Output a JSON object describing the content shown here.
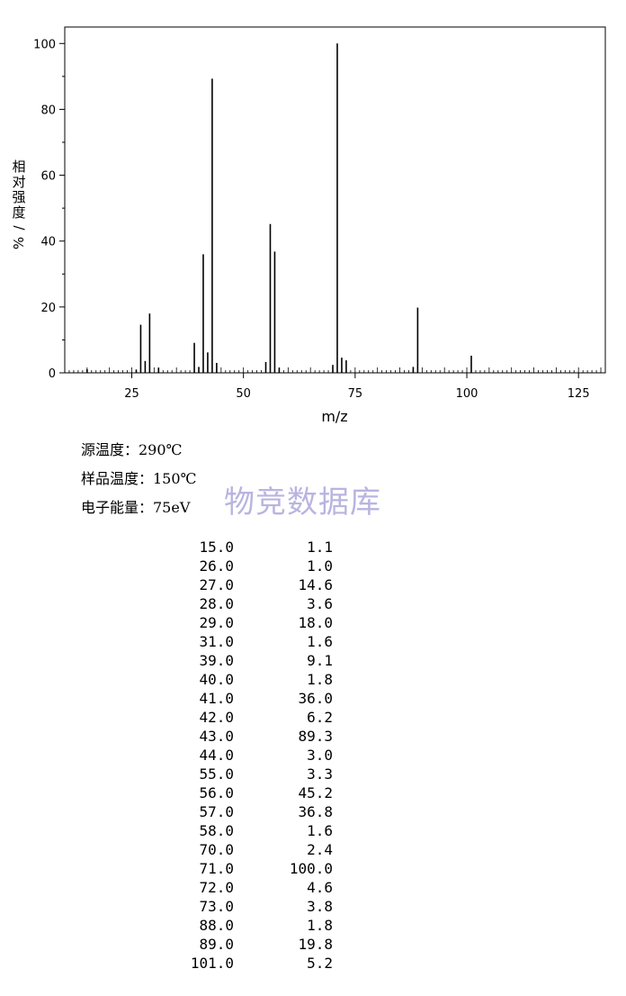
{
  "chart_data": {
    "type": "bar",
    "xlabel": "m/z",
    "ylabel": "相对强度/%",
    "xlim": [
      10,
      131
    ],
    "ylim": [
      0,
      105
    ],
    "xticks": [
      25,
      50,
      75,
      100,
      125
    ],
    "yticks": [
      0,
      20,
      40,
      60,
      80,
      100
    ],
    "grid": false,
    "x": [
      15,
      26,
      27,
      28,
      29,
      31,
      39,
      40,
      41,
      42,
      43,
      44,
      55,
      56,
      57,
      58,
      70,
      71,
      72,
      73,
      88,
      89,
      101
    ],
    "values": [
      1.1,
      1.0,
      14.6,
      3.6,
      18.0,
      1.6,
      9.1,
      1.8,
      36.0,
      6.2,
      89.3,
      3.0,
      3.3,
      45.2,
      36.8,
      1.6,
      2.4,
      100.0,
      4.6,
      3.8,
      1.8,
      19.8,
      5.2
    ]
  },
  "conditions": {
    "source_temp": "源温度：290℃",
    "sample_temp": "样品温度：150℃",
    "electron_energy": "电子能量：75eV"
  },
  "watermark": "物竞数据库",
  "peaks": [
    {
      "mz": "15.0",
      "intensity": "1.1"
    },
    {
      "mz": "26.0",
      "intensity": "1.0"
    },
    {
      "mz": "27.0",
      "intensity": "14.6"
    },
    {
      "mz": "28.0",
      "intensity": "3.6"
    },
    {
      "mz": "29.0",
      "intensity": "18.0"
    },
    {
      "mz": "31.0",
      "intensity": "1.6"
    },
    {
      "mz": "39.0",
      "intensity": "9.1"
    },
    {
      "mz": "40.0",
      "intensity": "1.8"
    },
    {
      "mz": "41.0",
      "intensity": "36.0"
    },
    {
      "mz": "42.0",
      "intensity": "6.2"
    },
    {
      "mz": "43.0",
      "intensity": "89.3"
    },
    {
      "mz": "44.0",
      "intensity": "3.0"
    },
    {
      "mz": "55.0",
      "intensity": "3.3"
    },
    {
      "mz": "56.0",
      "intensity": "45.2"
    },
    {
      "mz": "57.0",
      "intensity": "36.8"
    },
    {
      "mz": "58.0",
      "intensity": "1.6"
    },
    {
      "mz": "70.0",
      "intensity": "2.4"
    },
    {
      "mz": "71.0",
      "intensity": "100.0"
    },
    {
      "mz": "72.0",
      "intensity": "4.6"
    },
    {
      "mz": "73.0",
      "intensity": "3.8"
    },
    {
      "mz": "88.0",
      "intensity": "1.8"
    },
    {
      "mz": "89.0",
      "intensity": "19.8"
    },
    {
      "mz": "101.0",
      "intensity": "5.2"
    }
  ]
}
